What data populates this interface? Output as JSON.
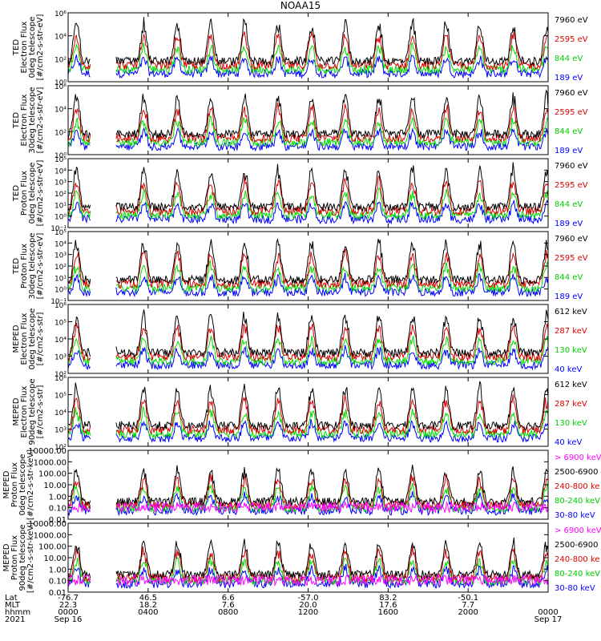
{
  "figure_title": "NOAA15",
  "colors": {
    "black": "#000000",
    "blue": "#0000ff",
    "red": "#dd0000",
    "green": "#00dd00",
    "magenta": "#ff00ff",
    "axis": "#000000"
  },
  "chart_data": [
    {
      "type": "line",
      "ylabel": [
        "TED",
        "Electron Flux",
        "0deg telescope",
        "[#/cm2-s-str-eV]"
      ],
      "yscale": "log",
      "ylim": [
        1,
        1000000
      ],
      "yticks": [
        {
          "v": 1,
          "label": "10⁰"
        },
        {
          "v": 100,
          "label": "10²"
        },
        {
          "v": 10000,
          "label": "10⁴"
        },
        {
          "v": 1000000,
          "label": "10⁶"
        }
      ],
      "series": [
        {
          "name": "7960 eV",
          "color": "#000000"
        },
        {
          "name": "2595 eV",
          "color": "#dd0000"
        },
        {
          "name": "844 eV",
          "color": "#00dd00"
        },
        {
          "name": "189 eV",
          "color": "#0000ff"
        }
      ]
    },
    {
      "type": "line",
      "ylabel": [
        "TED",
        "Electron Flux",
        "30deg telescope",
        "[#/cm2-s-str-eV]"
      ],
      "yscale": "log",
      "ylim": [
        1,
        1000000
      ],
      "yticks": [
        {
          "v": 1,
          "label": "10⁰"
        },
        {
          "v": 100,
          "label": "10²"
        },
        {
          "v": 10000,
          "label": "10⁴"
        },
        {
          "v": 1000000,
          "label": "10⁶"
        }
      ],
      "series": [
        {
          "name": "7960 eV",
          "color": "#000000"
        },
        {
          "name": "2595 eV",
          "color": "#dd0000"
        },
        {
          "name": "844 eV",
          "color": "#00dd00"
        },
        {
          "name": "189 eV",
          "color": "#0000ff"
        }
      ]
    },
    {
      "type": "line",
      "ylabel": [
        "TED",
        "Proton Flux",
        "0deg telescope",
        "[#/cm2-s-str-eV]"
      ],
      "yscale": "log",
      "ylim": [
        0.1,
        100000
      ],
      "yticks": [
        {
          "v": 0.1,
          "label": "10⁻¹"
        },
        {
          "v": 1,
          "label": "10⁰"
        },
        {
          "v": 10,
          "label": "10¹"
        },
        {
          "v": 100,
          "label": "10²"
        },
        {
          "v": 1000,
          "label": "10³"
        },
        {
          "v": 10000,
          "label": "10⁴"
        },
        {
          "v": 100000,
          "label": "10⁵"
        }
      ],
      "series": [
        {
          "name": "7960 eV",
          "color": "#000000"
        },
        {
          "name": "2595 eV",
          "color": "#dd0000"
        },
        {
          "name": "844 eV",
          "color": "#00dd00"
        },
        {
          "name": "189 eV",
          "color": "#0000ff"
        }
      ]
    },
    {
      "type": "line",
      "ylabel": [
        "TED",
        "Proton Flux",
        "30deg telescope",
        "[#/cm2-s-str-eV]"
      ],
      "yscale": "log",
      "ylim": [
        0.1,
        100000
      ],
      "yticks": [
        {
          "v": 0.1,
          "label": "10⁻¹"
        },
        {
          "v": 1,
          "label": "10⁰"
        },
        {
          "v": 10,
          "label": "10¹"
        },
        {
          "v": 100,
          "label": "10²"
        },
        {
          "v": 1000,
          "label": "10³"
        },
        {
          "v": 10000,
          "label": "10⁴"
        },
        {
          "v": 100000,
          "label": "10⁵"
        }
      ],
      "series": [
        {
          "name": "7960 eV",
          "color": "#000000"
        },
        {
          "name": "2595 eV",
          "color": "#dd0000"
        },
        {
          "name": "844 eV",
          "color": "#00dd00"
        },
        {
          "name": "189 eV",
          "color": "#0000ff"
        }
      ]
    },
    {
      "type": "line",
      "ylabel": [
        "MEPED",
        "Electron Flux",
        "0deg telescope",
        "[#/cm2-s-str]"
      ],
      "yscale": "log",
      "ylim": [
        100,
        1000000
      ],
      "yticks": [
        {
          "v": 100,
          "label": "10²"
        },
        {
          "v": 1000,
          "label": "10³"
        },
        {
          "v": 10000,
          "label": "10⁴"
        },
        {
          "v": 100000,
          "label": "10⁵"
        },
        {
          "v": 1000000,
          "label": "10⁶"
        }
      ],
      "series": [
        {
          "name": "612 keV",
          "color": "#000000"
        },
        {
          "name": "287 keV",
          "color": "#dd0000"
        },
        {
          "name": "130 keV",
          "color": "#00dd00"
        },
        {
          "name": "40 keV",
          "color": "#0000ff"
        }
      ]
    },
    {
      "type": "line",
      "ylabel": [
        "MEPED",
        "Electron Flux",
        "90deg telescope",
        "[#/cm2-s-str]"
      ],
      "yscale": "log",
      "ylim": [
        100,
        1000000
      ],
      "yticks": [
        {
          "v": 100,
          "label": "10²"
        },
        {
          "v": 1000,
          "label": "10³"
        },
        {
          "v": 10000,
          "label": "10⁴"
        },
        {
          "v": 100000,
          "label": "10⁵"
        },
        {
          "v": 1000000,
          "label": "10⁶"
        }
      ],
      "series": [
        {
          "name": "612 keV",
          "color": "#000000"
        },
        {
          "name": "287 keV",
          "color": "#dd0000"
        },
        {
          "name": "130 keV",
          "color": "#00dd00"
        },
        {
          "name": "40 keV",
          "color": "#0000ff"
        }
      ]
    },
    {
      "type": "line",
      "ylabel": [
        "MEPED",
        "Proton Flux",
        "0deg telescope",
        "[#/cm2-s-str-keV]"
      ],
      "yscale": "log",
      "ylim": [
        0.01,
        10000
      ],
      "yticks": [
        {
          "v": 0.01,
          "label": "0.01"
        },
        {
          "v": 0.1,
          "label": "0.10"
        },
        {
          "v": 1,
          "label": "1.00"
        },
        {
          "v": 10,
          "label": "10.00"
        },
        {
          "v": 100,
          "label": "100.00"
        },
        {
          "v": 1000,
          "label": "1000.00"
        },
        {
          "v": 10000,
          "label": "10000.00"
        }
      ],
      "series": [
        {
          "name": "> 6900 keV",
          "color": "#ff00ff"
        },
        {
          "name": "2500-6900",
          "color": "#000000"
        },
        {
          "name": "240-800 ke",
          "color": "#dd0000"
        },
        {
          "name": "80-240 keV",
          "color": "#00dd00"
        },
        {
          "name": "30-80 keV",
          "color": "#0000ff"
        }
      ]
    },
    {
      "type": "line",
      "ylabel": [
        "MEPED",
        "Proton Flux",
        "90deg telescope",
        "[#/cm2-s-str-keV]"
      ],
      "yscale": "log",
      "ylim": [
        0.01,
        10000
      ],
      "yticks": [
        {
          "v": 0.01,
          "label": "0.01"
        },
        {
          "v": 0.1,
          "label": "0.10"
        },
        {
          "v": 1,
          "label": "1.00"
        },
        {
          "v": 10,
          "label": "10.00"
        },
        {
          "v": 100,
          "label": "100.00"
        },
        {
          "v": 1000,
          "label": "1000.00"
        },
        {
          "v": 10000,
          "label": "10000.00"
        }
      ],
      "series": [
        {
          "name": "> 6900 keV",
          "color": "#ff00ff"
        },
        {
          "name": "2500-6900",
          "color": "#000000"
        },
        {
          "name": "240-800 ke",
          "color": "#dd0000"
        },
        {
          "name": "80-240 keV",
          "color": "#00dd00"
        },
        {
          "name": "30-80 keV",
          "color": "#0000ff"
        }
      ]
    }
  ],
  "x_axis": {
    "row_labels": [
      "Lat",
      "MLT",
      "hhmm",
      "2021"
    ],
    "ticks": [
      {
        "hour": 0,
        "lat": "-76.7",
        "mlt": "22.3",
        "hhmm": "0000",
        "date": "Sep 16"
      },
      {
        "hour": 4,
        "lat": "46.5",
        "mlt": "18.2",
        "hhmm": "0400",
        "date": ""
      },
      {
        "hour": 8,
        "lat": "6.6",
        "mlt": "7.6",
        "hhmm": "0800",
        "date": ""
      },
      {
        "hour": 12,
        "lat": "-57.0",
        "mlt": "20.0",
        "hhmm": "1200",
        "date": ""
      },
      {
        "hour": 16,
        "lat": "83.2",
        "mlt": "17.6",
        "hhmm": "1600",
        "date": ""
      },
      {
        "hour": 20,
        "lat": "-50.1",
        "mlt": "7.7",
        "hhmm": "2000",
        "date": ""
      },
      {
        "hour": 24,
        "lat": "",
        "mlt": "",
        "hhmm": "0000",
        "date": "Sep 17"
      }
    ],
    "xlim_hours": [
      0,
      24
    ],
    "data_gap_hours": [
      1.15,
      2.4
    ]
  }
}
